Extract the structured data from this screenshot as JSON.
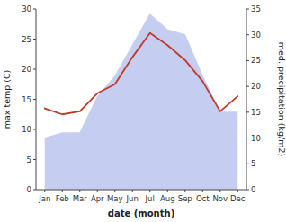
{
  "chart_data": {
    "type": "line",
    "xlabel": "date (month)",
    "ylabel": "max temp (C)",
    "y2label": "med. precipitation (kg/m2)",
    "categories": [
      "Jan",
      "Feb",
      "Mar",
      "Apr",
      "May",
      "Jun",
      "Jul",
      "Aug",
      "Sep",
      "Oct",
      "Nov",
      "Dec"
    ],
    "series": [
      {
        "type": "area",
        "axis": "y2",
        "color": "#c5cef0",
        "values": [
          10.0,
          11.0,
          11.0,
          18.0,
          22.0,
          28.0,
          34.0,
          31.0,
          30.0,
          22.0,
          15.0,
          15.0
        ]
      },
      {
        "type": "line",
        "color": "#c0392b",
        "values": [
          13.5,
          12.5,
          13.0,
          16.0,
          17.5,
          22.0,
          26.0,
          24.0,
          21.5,
          18.0,
          13.0,
          15.5
        ]
      }
    ],
    "ylim": [
      0,
      30
    ],
    "yticks": [
      0,
      5,
      10,
      15,
      20,
      25,
      30
    ],
    "y2lim": [
      0,
      35
    ],
    "y2ticks": [
      0,
      5,
      10,
      15,
      20,
      25,
      30,
      35
    ],
    "grid": false
  }
}
